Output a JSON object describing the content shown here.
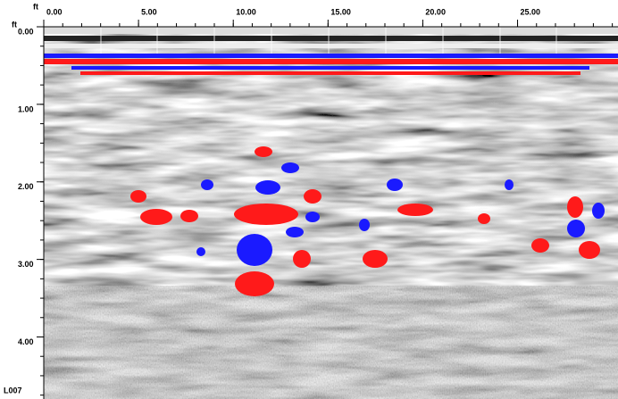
{
  "chart_data": {
    "type": "radargram",
    "x_unit": "ft",
    "y_unit": "ft",
    "profile_label": "L007",
    "xlim": [
      0,
      30.3
    ],
    "ylim": [
      0,
      4.8
    ],
    "xticks": [
      {
        "value": 0,
        "label": "0.00"
      },
      {
        "value": 5,
        "label": "5.00"
      },
      {
        "value": 10,
        "label": "10.00"
      },
      {
        "value": 15,
        "label": "15.00"
      },
      {
        "value": 20,
        "label": "20.00"
      },
      {
        "value": 25,
        "label": "25.00"
      }
    ],
    "yticks": [
      {
        "value": 0,
        "label": "0.00"
      },
      {
        "value": 1,
        "label": "1.00"
      },
      {
        "value": 2,
        "label": "2.00"
      },
      {
        "value": 3,
        "label": "3.00"
      },
      {
        "value": 4,
        "label": "4.00"
      }
    ]
  }
}
